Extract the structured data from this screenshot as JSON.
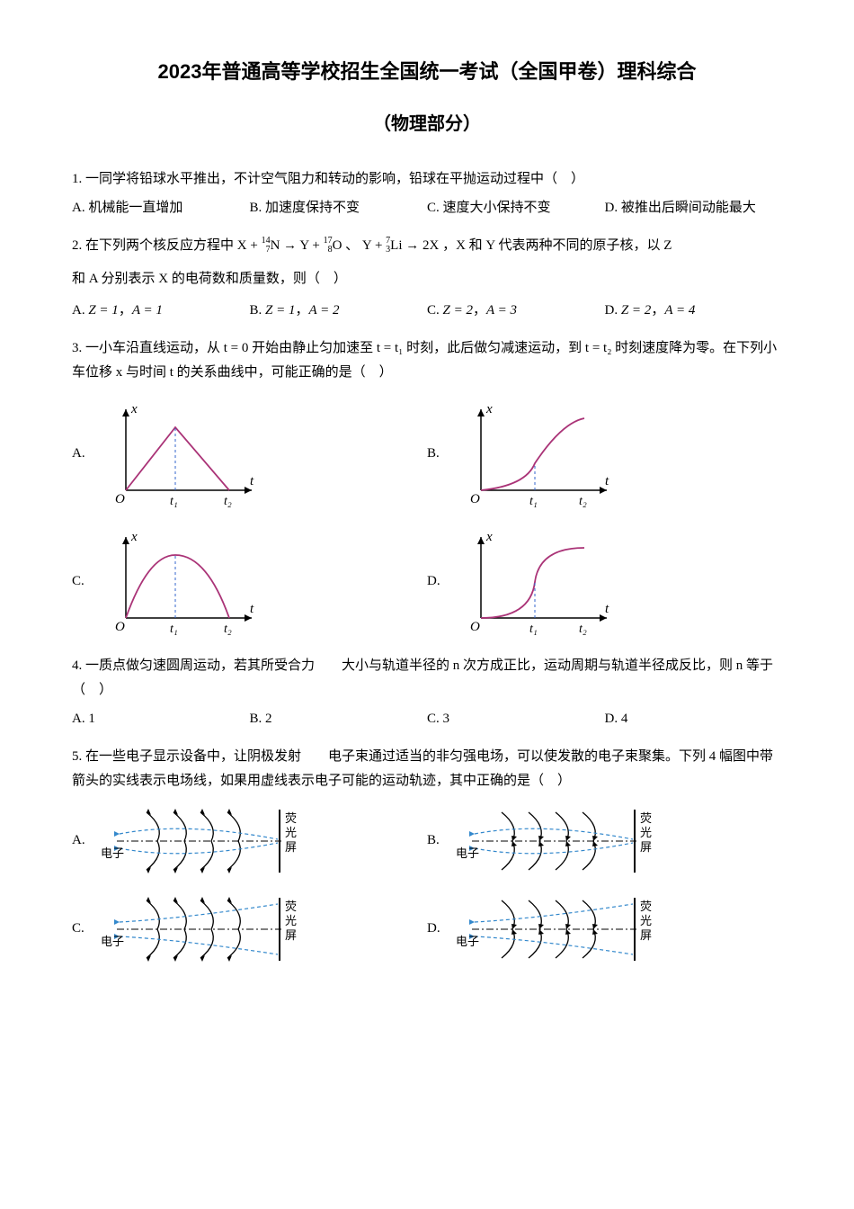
{
  "title": "2023年普通高等学校招生全国统一考试（全国甲卷）理科综合",
  "subtitle": "（物理部分）",
  "q1": {
    "stem": "1. 一同学将铅球水平推出，不计空气阻力和转动的影响，铅球在平抛运动过程中（　）",
    "A": "A. 机械能一直增加",
    "B": "B. 加速度保持不变",
    "C": "C. 速度大小保持不变",
    "D": "D. 被推出后瞬间动能最大"
  },
  "q2": {
    "stem_pre": "2. 在下列两个核反应方程中",
    "eq1_a": "X + ",
    "eq1_b": "N →  Y + ",
    "eq1_c": "O",
    "eq2_a": "、 Y + ",
    "eq2_b": "Li → 2X",
    "stem_post": "，X 和 Y 代表两种不同的原子核，以 Z",
    "stem_line2": "和 A 分别表示 X 的电荷数和质量数，则（　）",
    "A_pre": "A. ",
    "A_eq": "Z = 1",
    "A_mid": "，",
    "A_eq2": "A = 1",
    "B_pre": "B. ",
    "B_eq": "Z = 1",
    "B_mid": "，",
    "B_eq2": "A = 2",
    "C_pre": "C. ",
    "C_eq": "Z = 2",
    "C_mid": "，",
    "C_eq2": "A = 3",
    "D_pre": "D. ",
    "D_eq": "Z = 2",
    "D_mid": "，",
    "D_eq2": "A = 4",
    "iso1_top": "14",
    "iso1_bot": "7",
    "iso2_top": "17",
    "iso2_bot": "8",
    "iso3_top": "7",
    "iso3_bot": "3"
  },
  "q3": {
    "stem": "3. 一小车沿直线运动，从 t = 0 开始由静止匀加速至 t = t₁ 时刻，此后做匀减速运动，到 t = t₂ 时刻速度降为零。在下列小车位移 x 与时间 t 的关系曲线中，可能正确的是（　）",
    "A": "A.",
    "B": "B.",
    "C": "C.",
    "D": "D.",
    "x_label": "x",
    "t_label": "t",
    "O_label": "O",
    "t1_label": "t₁",
    "t2_label": "t₂",
    "curve_color": "#aa3377",
    "axis_color": "#000000",
    "dash_color": "#3366cc"
  },
  "q4": {
    "stem": "4. 一质点做匀速圆周运动，若其所受合力　　大小与轨道半径的 n 次方成正比，运动周期与轨道半径成反比，则 n 等于（　）",
    "A": "A. 1",
    "B": "B. 2",
    "C": "C. 3",
    "D": "D. 4"
  },
  "q5": {
    "stem": "5. 在一些电子显示设备中，让阴极发射　　电子束通过适当的非匀强电场，可以使发散的电子束聚集。下列 4 幅图中带箭头的实线表示电场线，如果用虚线表示电子可能的运动轨迹，其中正确的是（　）",
    "A": "A.",
    "B": "B.",
    "C": "C.",
    "D": "D.",
    "left_label": "电子",
    "right_label": "荧光屏",
    "field_color": "#000000",
    "traj_color": "#3388cc"
  }
}
